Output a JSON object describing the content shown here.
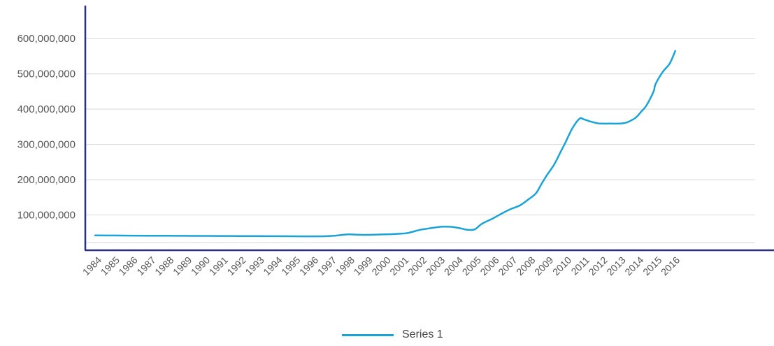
{
  "colors": {
    "series": "#1ba3d6",
    "axis": "#2c2f7e",
    "grid": "#d9d9d9",
    "text": "#555555"
  },
  "legend": {
    "position": "bottom"
  },
  "chart_data": {
    "type": "line",
    "grid": true,
    "ylim": [
      0,
      650000000
    ],
    "ytick_values": [
      100000000,
      200000000,
      300000000,
      400000000,
      500000000,
      600000000
    ],
    "ytick_labels": [
      "100,000,000",
      "200,000,000",
      "300,000,000",
      "400,000,000",
      "500,000,000",
      "600,000,000"
    ],
    "x_categories": [
      "1984",
      "1985",
      "1986",
      "1987",
      "1988",
      "1989",
      "1990",
      "1991",
      "1992",
      "1993",
      "1994",
      "1995",
      "1996",
      "1997",
      "1998",
      "1999",
      "2000",
      "2001",
      "2002",
      "2003",
      "2004",
      "2005",
      "2006",
      "2007",
      "2008",
      "2009",
      "2010",
      "2011",
      "2012",
      "2013",
      "2014",
      "2015",
      "2016"
    ],
    "series": [
      {
        "name": "Series 1",
        "x": [
          1984,
          1985,
          1986,
          1987,
          1988,
          1989,
          1990,
          1991,
          1992,
          1993,
          1994,
          1995,
          1996,
          1996.8,
          1997.3,
          1998,
          1998.5,
          1999,
          2000,
          2000.4,
          2000.8,
          2001.3,
          2002,
          2002.5,
          2003,
          2003.3,
          2003.8,
          2004.3,
          2004.6,
          2005,
          2005.4,
          2006,
          2006.5,
          2007,
          2007.5,
          2008,
          2008.4,
          2008.7,
          2009,
          2009.4,
          2009.8,
          2010,
          2010.4,
          2010.8,
          2011,
          2011.4,
          2011.8,
          2012,
          2012.5,
          2013,
          2013.4,
          2013.8,
          2014,
          2014.2,
          2014.5,
          2014.9,
          2015,
          2015.4,
          2015.8,
          2016.1
        ],
        "y": [
          42000000,
          41800000,
          41500000,
          41300000,
          41000000,
          40800000,
          40600000,
          40400000,
          40200000,
          40000000,
          39800000,
          39600000,
          39400000,
          39800000,
          41500000,
          45000000,
          44000000,
          43500000,
          45000000,
          45500000,
          46500000,
          49000000,
          58000000,
          62000000,
          66000000,
          67000000,
          66000000,
          61000000,
          58000000,
          59000000,
          75000000,
          90000000,
          104000000,
          117000000,
          127000000,
          145000000,
          162000000,
          188000000,
          213000000,
          243000000,
          283000000,
          303000000,
          345000000,
          373000000,
          372000000,
          365000000,
          360000000,
          359000000,
          359000000,
          359000000,
          362000000,
          372000000,
          380000000,
          392000000,
          410000000,
          450000000,
          470000000,
          505000000,
          530000000,
          565000000
        ]
      }
    ]
  }
}
